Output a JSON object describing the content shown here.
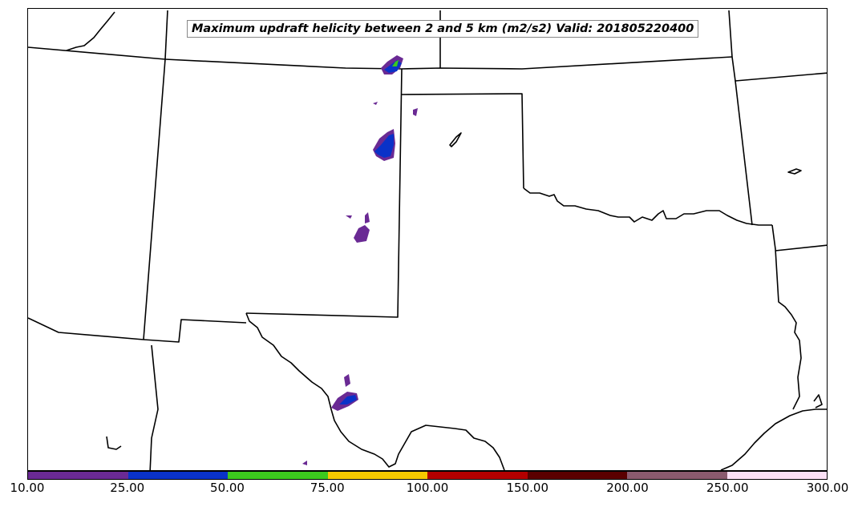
{
  "title": "Maximum updraft helicity between 2 and 5 km (m2/s2) Valid: 201805220400",
  "colorbar": {
    "ticks": [
      "10.00",
      "25.00",
      "50.00",
      "75.00",
      "100.00",
      "150.00",
      "200.00",
      "250.00",
      "300.00"
    ],
    "colors": [
      "#6a2a94",
      "#0a32c8",
      "#3cc81e",
      "#f5c800",
      "#b40000",
      "#5a0000",
      "#8a5a6e",
      "#fbe0f5"
    ]
  },
  "legend_layers": {
    "boundary_color": "#000000",
    "helicity_levels": [
      "10-25",
      "25-50",
      "50-75"
    ]
  }
}
